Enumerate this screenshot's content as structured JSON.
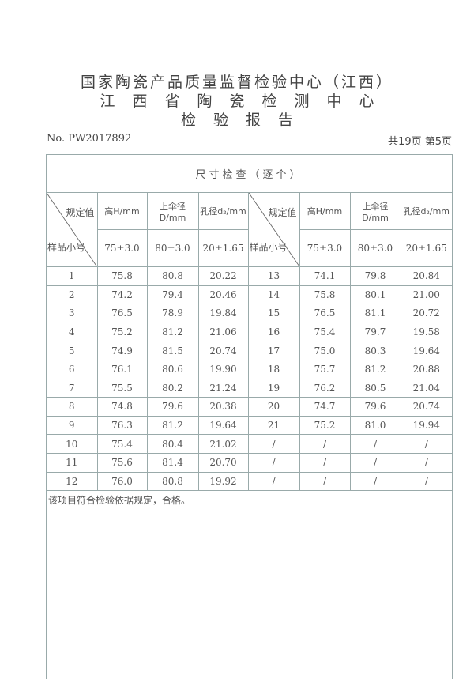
{
  "header": {
    "line1": "国家陶瓷产品质量监督检验中心（江西）",
    "line2": "江西省陶瓷检测中心",
    "line3": "检验报告",
    "report_no": "No. PW2017892",
    "page_info": "共19页 第5页"
  },
  "table": {
    "caption": "尺寸检查（逐个）",
    "corner_top": "规定值",
    "corner_bottom": "样品小号",
    "columns": [
      "高H/mm",
      "上伞径D/mm",
      "孔径d₂/mm"
    ],
    "specs": [
      "75±3.0",
      "80±3.0",
      "20±1.65"
    ],
    "rows": [
      [
        [
          "1",
          "75.8",
          "80.8",
          "20.22"
        ],
        [
          "13",
          "74.1",
          "79.8",
          "20.84"
        ]
      ],
      [
        [
          "2",
          "74.2",
          "79.4",
          "20.46"
        ],
        [
          "14",
          "75.8",
          "80.1",
          "21.00"
        ]
      ],
      [
        [
          "3",
          "76.5",
          "78.9",
          "19.84"
        ],
        [
          "15",
          "76.5",
          "81.1",
          "20.72"
        ]
      ],
      [
        [
          "4",
          "75.2",
          "81.2",
          "21.06"
        ],
        [
          "16",
          "75.4",
          "79.7",
          "19.58"
        ]
      ],
      [
        [
          "5",
          "74.9",
          "81.5",
          "20.74"
        ],
        [
          "17",
          "75.0",
          "80.3",
          "19.64"
        ]
      ],
      [
        [
          "6",
          "76.1",
          "80.6",
          "19.90"
        ],
        [
          "18",
          "75.7",
          "81.2",
          "20.88"
        ]
      ],
      [
        [
          "7",
          "75.5",
          "80.2",
          "21.24"
        ],
        [
          "19",
          "76.2",
          "80.5",
          "21.04"
        ]
      ],
      [
        [
          "8",
          "74.8",
          "79.6",
          "20.38"
        ],
        [
          "20",
          "74.7",
          "79.6",
          "20.74"
        ]
      ],
      [
        [
          "9",
          "76.3",
          "81.2",
          "19.64"
        ],
        [
          "21",
          "75.2",
          "81.0",
          "19.94"
        ]
      ],
      [
        [
          "10",
          "75.4",
          "80.4",
          "21.02"
        ],
        [
          "/",
          "/",
          "/",
          "/"
        ]
      ],
      [
        [
          "11",
          "75.6",
          "81.4",
          "20.70"
        ],
        [
          "/",
          "/",
          "/",
          "/"
        ]
      ],
      [
        [
          "12",
          "76.0",
          "80.8",
          "19.92"
        ],
        [
          "/",
          "/",
          "/",
          "/"
        ]
      ]
    ],
    "remark": "该项目符合检验依据规定，合格。"
  }
}
